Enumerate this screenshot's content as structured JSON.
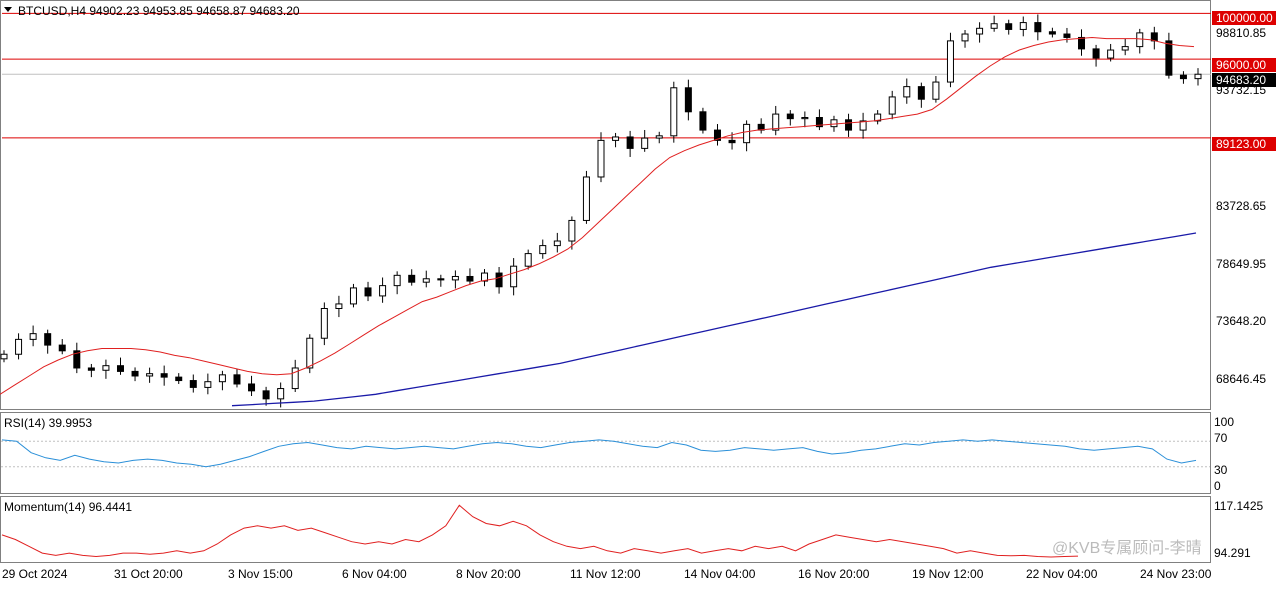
{
  "symbol_header": {
    "text": "BTCUSD,H4  94902.23 94953.85 94658.87 94683.20"
  },
  "main_axis": {
    "price_labels": [
      "98810.85",
      "93732.15",
      "83728.65",
      "78649.95",
      "73648.20",
      "68646.45"
    ]
  },
  "level_lines": [
    {
      "label": "100000.00",
      "value": 100000,
      "color": "#dd0000"
    },
    {
      "label": "96000.00",
      "value": 96000,
      "color": "#dd0000"
    },
    {
      "label": "89123.00",
      "value": 89123,
      "color": "#dd0000"
    }
  ],
  "current_price": {
    "label": "94683.20",
    "value": 94683.2
  },
  "rsi_panel": {
    "title": "RSI(14) 39.9953",
    "levels": [
      "100",
      "70",
      "30",
      "0"
    ]
  },
  "momentum_panel": {
    "title": "Momentum(14) 96.4441",
    "levels": [
      "117.1425",
      "94.291"
    ]
  },
  "time_axis": {
    "labels": [
      "29 Oct 2024",
      "31 Oct 20:00",
      "3 Nov 15:00",
      "6 Nov 04:00",
      "8 Nov 20:00",
      "11 Nov 12:00",
      "14 Nov 04:00",
      "16 Nov 20:00",
      "19 Nov 12:00",
      "22 Nov 04:00",
      "24 Nov 23:00"
    ]
  },
  "watermark": {
    "text": "@KVB专属顾问-李晴"
  },
  "colors": {
    "bull": "#ffffff",
    "bear": "#000000",
    "ma_fast": "#e02020",
    "ma_slow": "#1a1aa8",
    "rsi": "#2a8fd8",
    "momentum": "#e02020",
    "level": "#dd0000"
  },
  "chart_data": [
    {
      "type": "candlestick",
      "title": "BTCUSD,H4",
      "ohlc_last": {
        "open": 94902.23,
        "high": 94953.85,
        "low": 94658.87,
        "close": 94683.2
      },
      "y_range": [
        65500,
        101000
      ],
      "close_path": [
        70200,
        71500,
        72000,
        71000,
        70500,
        69000,
        68800,
        69200,
        68700,
        68300,
        68500,
        68200,
        67900,
        67300,
        67800,
        68400,
        67600,
        67000,
        66300,
        67200,
        69000,
        71600,
        74200,
        74600,
        76000,
        75300,
        76200,
        77100,
        76500,
        76800,
        76700,
        77000,
        76600,
        77300,
        76100,
        77900,
        79000,
        79700,
        80100,
        81900,
        85700,
        88900,
        89200,
        88200,
        89100,
        89300,
        93500,
        91400,
        89800,
        88900,
        88700,
        90300,
        89800,
        91200,
        90800,
        90900,
        90100,
        90700,
        89800,
        90600,
        91200,
        92700,
        93600,
        92500,
        94000,
        97600,
        98200,
        98700,
        99100,
        98600,
        99200,
        98400,
        98200,
        97900,
        96900,
        96100,
        96800,
        97100,
        98300,
        97600,
        94600,
        94300,
        94683
      ],
      "ma_fast": [
        66700,
        67500,
        68300,
        69100,
        69700,
        70200,
        70500,
        70700,
        70700,
        70700,
        70600,
        70400,
        70100,
        69900,
        69600,
        69300,
        69000,
        68700,
        68500,
        68400,
        68500,
        69000,
        69600,
        70300,
        71100,
        71900,
        72700,
        73400,
        74100,
        74800,
        75200,
        75700,
        76200,
        76600,
        76800,
        77200,
        77600,
        78100,
        78700,
        79400,
        80400,
        81600,
        82800,
        84000,
        85200,
        86400,
        87400,
        88000,
        88500,
        88900,
        89300,
        89600,
        89800,
        89900,
        90000,
        90100,
        90200,
        90300,
        90400,
        90500,
        90600,
        90800,
        91000,
        91200,
        91600,
        92500,
        93500,
        94500,
        95400,
        96200,
        96800,
        97200,
        97500,
        97700,
        97800,
        97900,
        97800,
        97800,
        97800,
        97700,
        97400,
        97200,
        97100
      ],
      "ma_slow": [
        65700,
        65800,
        65900,
        66000,
        66100,
        66300,
        66500,
        66700,
        67000,
        67300,
        67600,
        67900,
        68200,
        68500,
        68800,
        69100,
        69400,
        69800,
        70200,
        70600,
        71000,
        71400,
        71800,
        72200,
        72600,
        73000,
        73400,
        73800,
        74200,
        74600,
        75000,
        75400,
        75800,
        76200,
        76600,
        77000,
        77400,
        77800,
        78100,
        78400,
        78700,
        79000,
        79300,
        79600,
        79900,
        80200,
        80500,
        80800
      ],
      "rsi": [
        72,
        70,
        52,
        44,
        40,
        48,
        42,
        38,
        36,
        40,
        42,
        40,
        36,
        34,
        30,
        34,
        40,
        46,
        54,
        62,
        66,
        68,
        64,
        60,
        58,
        62,
        60,
        58,
        60,
        62,
        60,
        58,
        62,
        66,
        68,
        66,
        62,
        60,
        64,
        68,
        70,
        72,
        70,
        66,
        62,
        60,
        68,
        64,
        56,
        54,
        56,
        60,
        58,
        56,
        58,
        60,
        54,
        50,
        52,
        56,
        58,
        62,
        66,
        64,
        68,
        70,
        72,
        70,
        72,
        70,
        68,
        66,
        64,
        62,
        58,
        56,
        58,
        60,
        62,
        58,
        42,
        36,
        40
      ],
      "momentum": [
        104,
        102,
        99,
        96,
        95,
        96,
        95,
        94.5,
        95,
        96,
        96,
        95.5,
        96,
        97,
        96,
        97,
        100,
        104,
        107,
        108,
        107,
        108,
        106,
        107,
        105,
        103,
        101,
        100,
        101,
        100,
        102,
        101,
        104,
        108,
        117,
        112,
        109,
        108,
        110,
        108,
        104,
        101,
        99,
        98,
        99,
        97,
        96,
        98,
        97,
        96,
        97,
        98,
        96,
        97,
        98,
        97,
        99,
        98,
        99,
        97,
        100,
        102,
        104,
        103,
        102,
        101,
        102,
        101,
        100,
        99,
        98,
        96,
        97,
        96,
        95,
        94.8,
        95,
        94.5,
        94.3,
        94.5,
        94.7
      ]
    }
  ]
}
